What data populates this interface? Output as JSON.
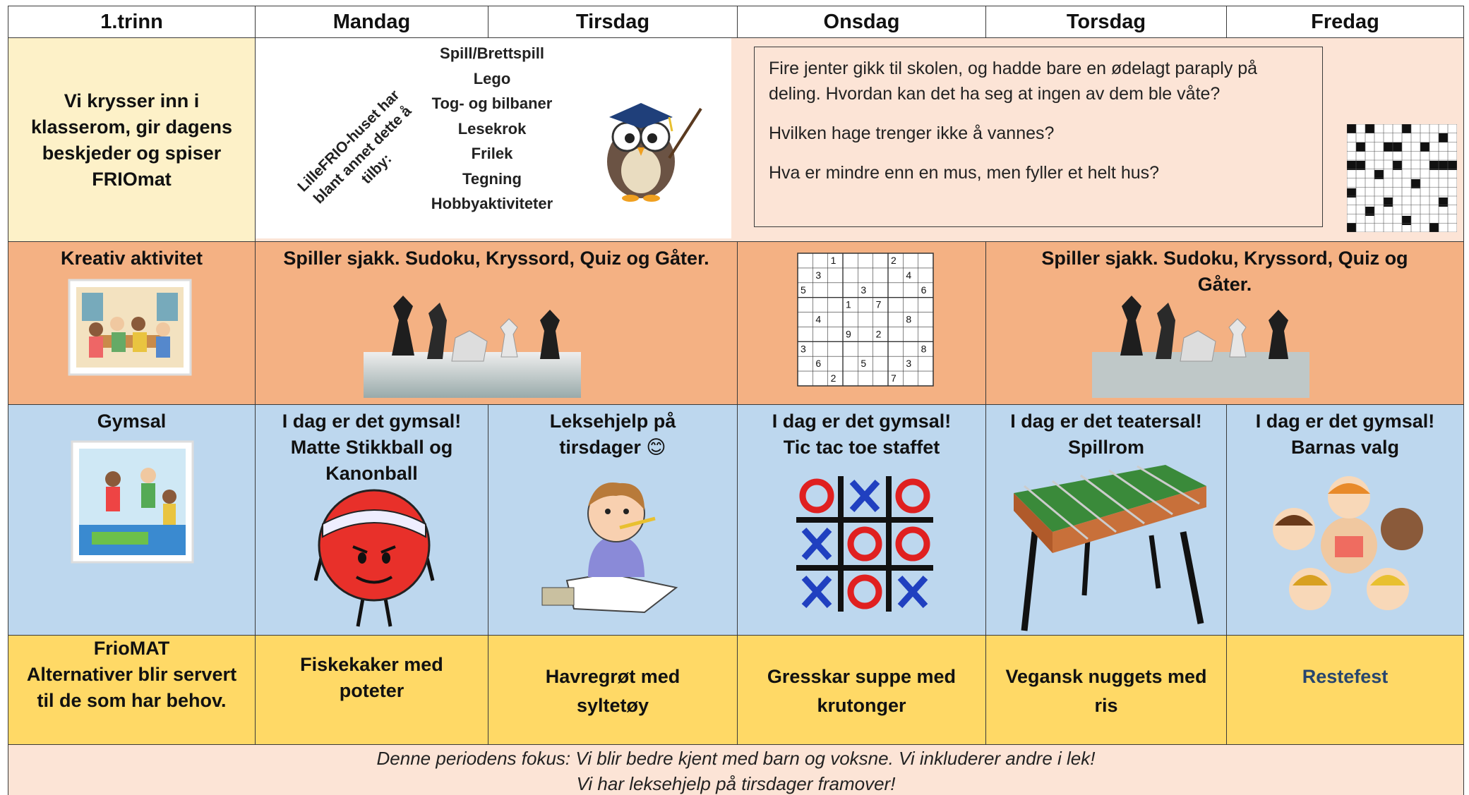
{
  "header": [
    "1.trinn",
    "Mandag",
    "Tirsdag",
    "Onsdag",
    "Torsdag",
    "Fredag"
  ],
  "row1": {
    "label": "Vi krysser inn i klasserom, gir dagens beskjeder og spiser FRIOmat",
    "lillefrio": {
      "rotated": "LilleFRIO-huset har blant annet dette å tilby:",
      "items": [
        "Spill/Brettspill",
        "Lego",
        "Tog- og bilbaner",
        "Lesekrok",
        "Frilek",
        "Tegning",
        "Hobbyaktiviteter"
      ]
    },
    "riddles": [
      "Fire jenter gikk til skolen, og hadde bare en ødelagt paraply på deling. Hvordan kan det ha seg at ingen av dem ble våte?",
      "Hvilken hage trenger ikke å vannes?",
      "Hva er mindre enn en mus, men fyller et helt hus?"
    ]
  },
  "row2": {
    "label": "Kreativ aktivitet",
    "mon_tue": "Spiller sjakk. Sudoku, Kryssord, Quiz og Gåter.",
    "thu_fri": "Spiller sjakk. Sudoku, Kryssord, Quiz og Gåter.",
    "sudoku": {
      "rows": [
        [
          null,
          null,
          1,
          null,
          null,
          null,
          2,
          null,
          null
        ],
        [
          null,
          3,
          null,
          null,
          null,
          null,
          null,
          4,
          null
        ],
        [
          5,
          null,
          null,
          null,
          3,
          null,
          null,
          null,
          6
        ],
        [
          null,
          null,
          null,
          1,
          null,
          7,
          null,
          null,
          null
        ],
        [
          null,
          4,
          null,
          null,
          null,
          null,
          null,
          8,
          null
        ],
        [
          null,
          null,
          null,
          9,
          null,
          2,
          null,
          null,
          null
        ],
        [
          3,
          null,
          null,
          null,
          null,
          null,
          null,
          null,
          8
        ],
        [
          null,
          6,
          null,
          null,
          5,
          null,
          null,
          3,
          null
        ],
        [
          null,
          null,
          2,
          null,
          null,
          null,
          7,
          null,
          null
        ]
      ]
    }
  },
  "row3": {
    "label": "Gymsal",
    "mandag": [
      "I dag er det gymsal!",
      "Matte Stikkball og Kanonball"
    ],
    "tirsdag": [
      "Leksehjelp på tirsdager 😊"
    ],
    "onsdag": [
      "I dag er det gymsal!",
      "Tic tac toe staffet"
    ],
    "torsdag": [
      "I dag er det teatersal!",
      "Spillrom"
    ],
    "fredag": [
      "I dag er det gymsal!",
      "Barnas valg"
    ]
  },
  "row4": {
    "label": [
      "FrioMAT",
      "Alternativer blir servert til de som har behov."
    ],
    "mandag": "Fiskekaker med poteter",
    "tirsdag": "Havregrøt med syltetøy",
    "onsdag": "Gresskar suppe med krutonger",
    "torsdag": "Vegansk nuggets med ris",
    "fredag": "Restefest"
  },
  "footer": [
    "Denne periodens fokus: Vi blir bedre kjent med barn og voksne. Vi inkluderer andre i lek!",
    "Vi har leksehjelp på tirsdager framover!"
  ]
}
